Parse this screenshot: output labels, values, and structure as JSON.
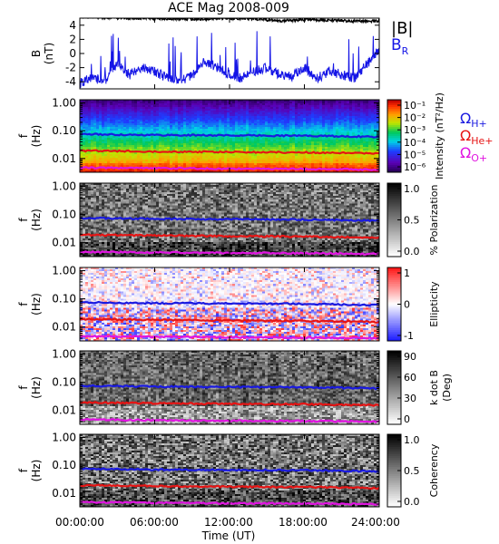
{
  "title": "ACE Mag 2008-009",
  "colors": {
    "B_total": "#000000",
    "B_R": "#1414e6",
    "H_plus": "#1a1ae0",
    "He_plus": "#e61414",
    "O_plus": "#e014e0"
  },
  "legend_top": {
    "b_total": "|B|",
    "b_r": "B",
    "b_r_sub": "R"
  },
  "legend_ions": [
    {
      "symbol": "Ω",
      "sub": "H+",
      "color": "#1a1ae0"
    },
    {
      "symbol": "Ω",
      "sub": "He+",
      "color": "#e61414"
    },
    {
      "symbol": "Ω",
      "sub": "O+",
      "color": "#e014e0"
    }
  ],
  "x_axis": {
    "label": "Time (UT)",
    "ticks": [
      "00:00:00",
      "06:00:00",
      "12:00:00",
      "18:00:00",
      "24:00:00"
    ],
    "tick_hours": [
      0,
      6,
      12,
      18,
      24
    ]
  },
  "freq_ticks": [
    "1.00",
    "0.10",
    "0.01"
  ],
  "freq_ylabel_1": "f",
  "freq_ylabel_2": "(Hz)",
  "chart_data": [
    {
      "type": "line",
      "panel": "magnetic field",
      "ylabel_1": "B",
      "ylabel_2": "(nT)",
      "yticks": [
        "4",
        "2",
        "0",
        "-2",
        "-4"
      ],
      "ylim": [
        -5,
        5
      ],
      "xlim": [
        0,
        24
      ],
      "series": [
        {
          "name": "|B|",
          "x": [
            0,
            2,
            4,
            6,
            8,
            10,
            12,
            14,
            16,
            18,
            20,
            22,
            24
          ],
          "values": [
            5.2,
            5.1,
            5.0,
            5.0,
            4.9,
            4.9,
            5.0,
            4.9,
            4.6,
            4.8,
            4.7,
            4.6,
            4.6
          ]
        },
        {
          "name": "B_R",
          "x": [
            0,
            1,
            2,
            3,
            4,
            5,
            6,
            7,
            8,
            9,
            10,
            11,
            12,
            13,
            14,
            15,
            16,
            17,
            18,
            19,
            20,
            21,
            22,
            23,
            24
          ],
          "values": [
            -4.2,
            -3.5,
            -3.8,
            -1.5,
            -3.0,
            -2.0,
            -2.5,
            -3.5,
            -3.8,
            -3.2,
            -1.0,
            -2.0,
            -3.0,
            -3.5,
            -2.5,
            -2.0,
            -3.0,
            -3.2,
            -2.0,
            -3.5,
            -2.5,
            -3.0,
            -3.5,
            -1.5,
            0.5
          ]
        }
      ]
    },
    {
      "type": "heatmap",
      "panel": "intensity",
      "colorbar_label": "Intensity (nT²/Hz)",
      "colorbar_ticks": [
        "10⁻¹",
        "10⁻²",
        "10⁻³",
        "10⁻⁴",
        "10⁻⁵",
        "10⁻⁶"
      ],
      "colorbar_range": [
        "1e-6",
        "1e-1"
      ]
    },
    {
      "type": "heatmap",
      "panel": "polarization",
      "colorbar_label": "% Polarization",
      "colorbar_ticks": [
        "1.0",
        "0.5",
        "0.0"
      ],
      "colorbar_range": [
        0,
        1
      ]
    },
    {
      "type": "heatmap",
      "panel": "ellipticity",
      "colorbar_label": "Ellipticity",
      "colorbar_ticks": [
        "1",
        "0",
        "-1"
      ],
      "colorbar_range": [
        -1,
        1
      ]
    },
    {
      "type": "heatmap",
      "panel": "k dot B",
      "colorbar_label": "k dot B",
      "colorbar_label_2": "(Deg)",
      "colorbar_ticks": [
        "90",
        "60",
        "30",
        "0"
      ],
      "colorbar_range": [
        0,
        90
      ]
    },
    {
      "type": "heatmap",
      "panel": "coherency",
      "colorbar_label": "Coherency",
      "colorbar_ticks": [
        "1.0",
        "0.5",
        "0.0"
      ],
      "colorbar_range": [
        0,
        1
      ]
    },
    {
      "type": "line",
      "panel": "ion gyrofrequencies (Hz), overlaid on every spectrogram",
      "x": [
        0,
        6,
        12,
        18,
        24
      ],
      "series": [
        {
          "name": "H+",
          "values": [
            0.075,
            0.07,
            0.068,
            0.066,
            0.06
          ]
        },
        {
          "name": "He+",
          "values": [
            0.019,
            0.018,
            0.017,
            0.0165,
            0.015
          ]
        },
        {
          "name": "O+",
          "values": [
            0.0047,
            0.0045,
            0.0043,
            0.0042,
            0.004
          ]
        }
      ]
    }
  ]
}
